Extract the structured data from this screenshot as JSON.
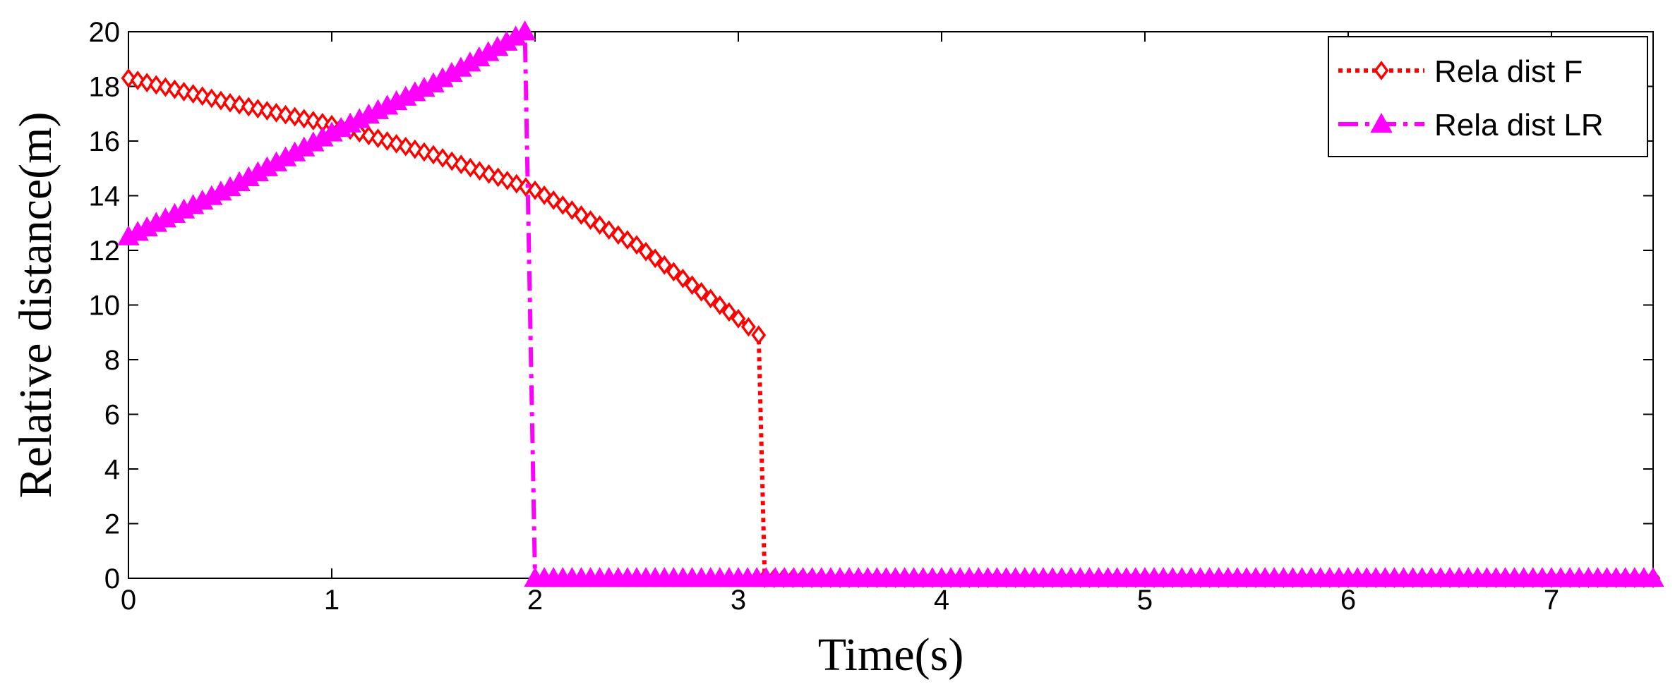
{
  "chart_data": {
    "type": "line",
    "xlabel": "Time(s)",
    "ylabel": "Relative distance(m)",
    "xlim": [
      0,
      7.5
    ],
    "ylim": [
      0,
      20
    ],
    "xticks": [
      "0",
      "1",
      "2",
      "3",
      "4",
      "5",
      "6",
      "7"
    ],
    "yticks": [
      "0",
      "2",
      "4",
      "6",
      "8",
      "10",
      "12",
      "14",
      "16",
      "18",
      "20"
    ],
    "grid": false,
    "legend_position": "top-right",
    "series": [
      {
        "name": "Rela dist F",
        "color": "#ff0000",
        "line_style": "dotted",
        "marker": "diamond",
        "x": [
          0,
          0.5,
          1.0,
          1.5,
          2.0,
          2.5,
          3.0,
          3.1,
          3.13,
          3.5,
          4.0,
          4.5,
          5.0,
          5.5,
          6.0,
          6.5,
          7.0,
          7.5
        ],
        "y": [
          18.3,
          17.4,
          16.6,
          15.5,
          14.2,
          12.2,
          9.5,
          8.9,
          0,
          0,
          0,
          0,
          0,
          0,
          0,
          0,
          0,
          0
        ]
      },
      {
        "name": "Rela dist LR",
        "color": "#ff00ff",
        "line_style": "dash-dot",
        "marker": "triangle",
        "x": [
          0,
          0.5,
          1.0,
          1.5,
          1.95,
          2.0,
          2.5,
          3.0,
          3.5,
          4.0,
          4.5,
          5.0,
          5.5,
          6.0,
          6.5,
          7.0,
          7.5
        ],
        "y": [
          12.5,
          14.3,
          16.3,
          18.1,
          20.0,
          0,
          0,
          0,
          0,
          0,
          0,
          0,
          0,
          0,
          0,
          0,
          0
        ]
      }
    ]
  }
}
